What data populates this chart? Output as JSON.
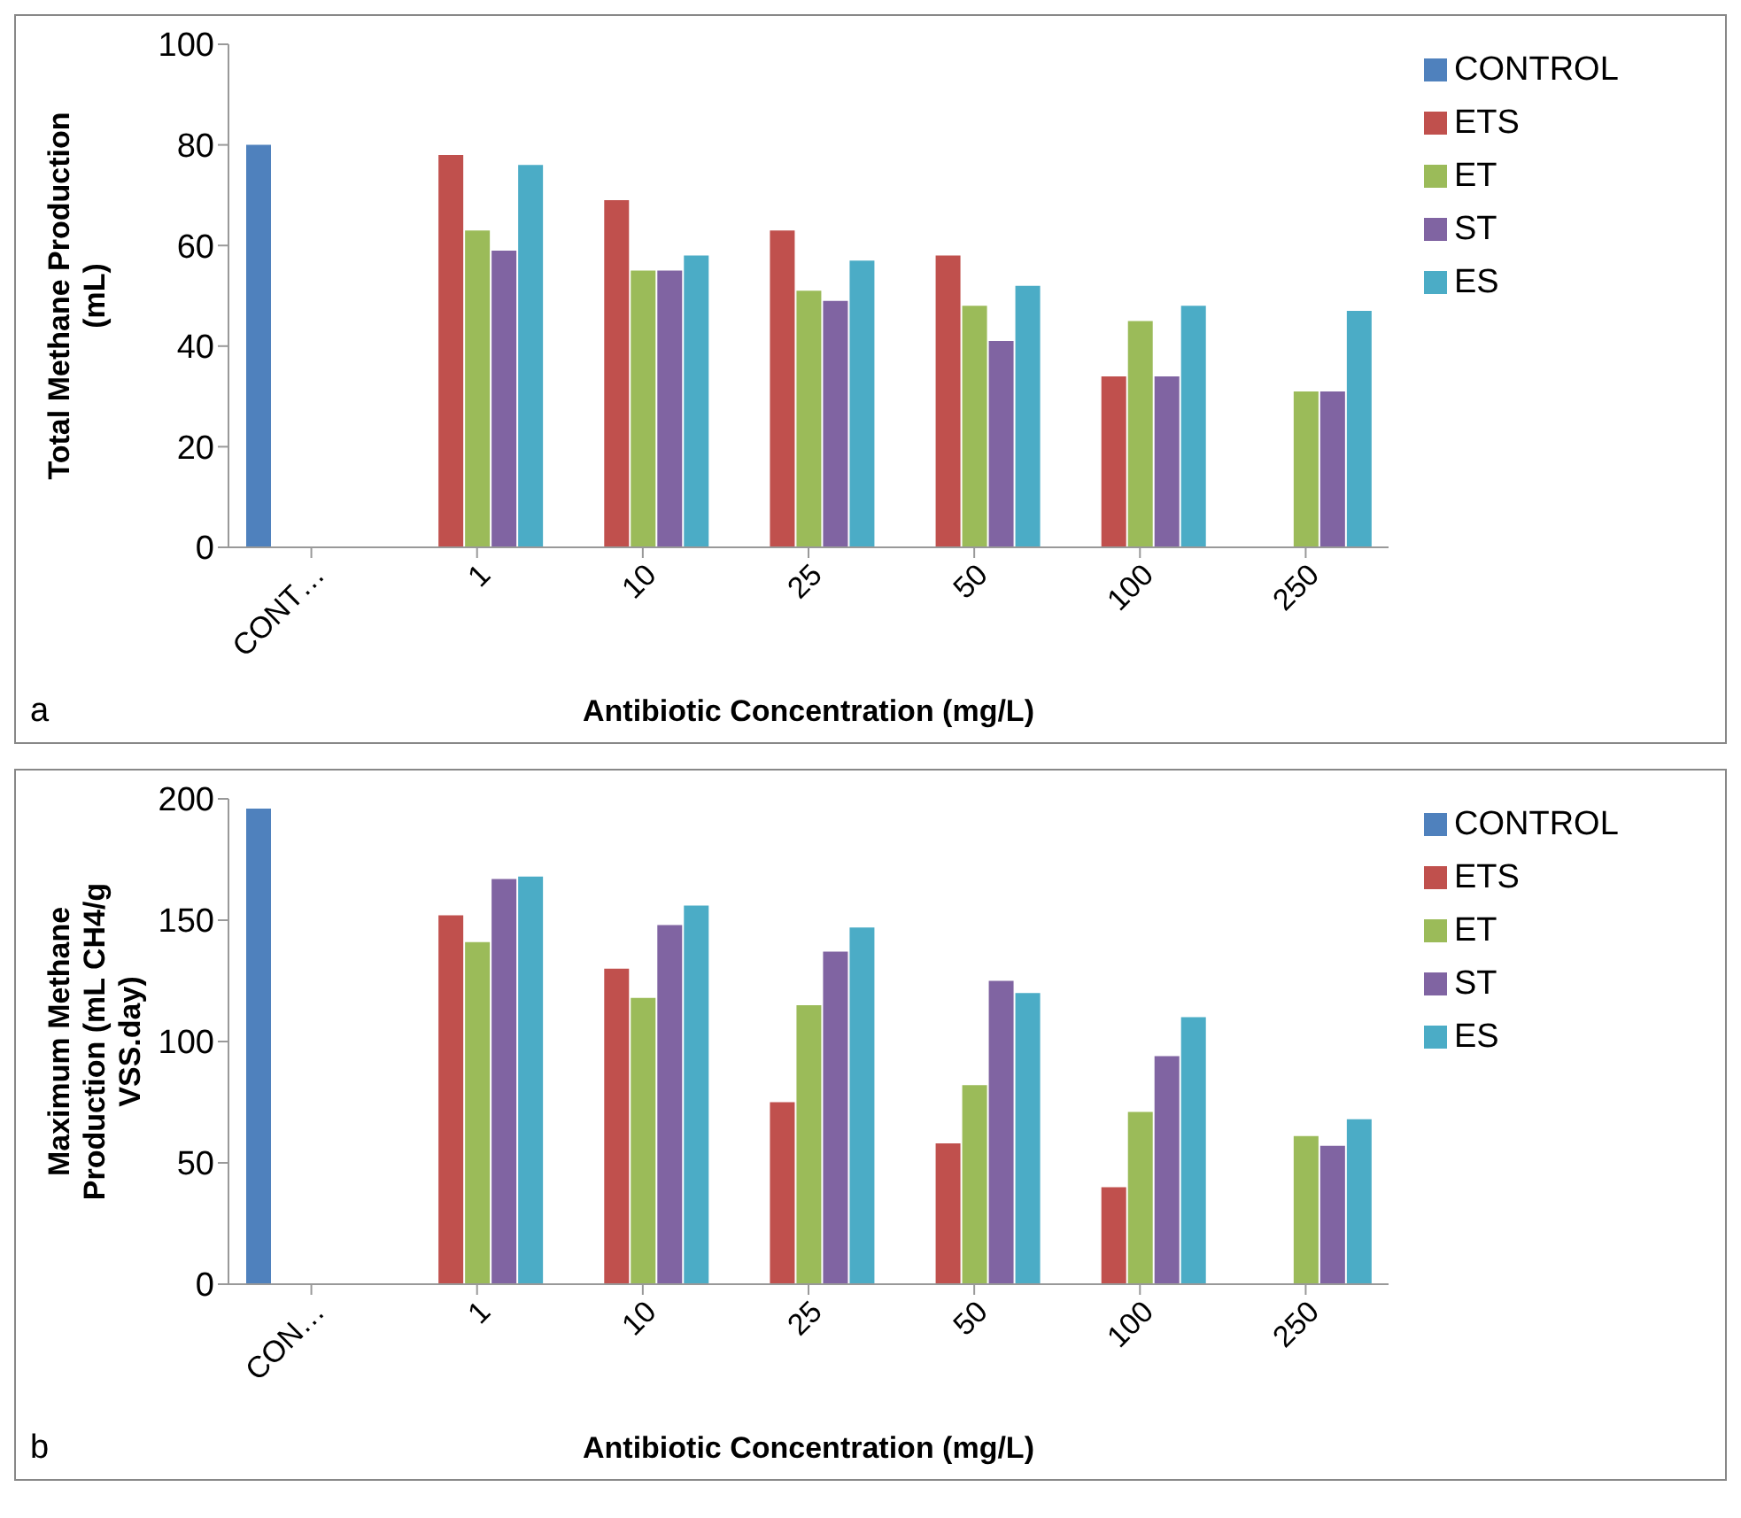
{
  "chart_data": [
    {
      "type": "bar",
      "xlabel": "Antibiotic Concentration (mg/L)",
      "ylabel": "Total Methane Production (mL)",
      "categories": [
        "CONT…",
        "1",
        "10",
        "25",
        "50",
        "100",
        "250"
      ],
      "series": [
        {
          "name": "CONTROL",
          "color": "#4f81bd",
          "values": [
            80,
            null,
            null,
            null,
            null,
            null,
            null
          ]
        },
        {
          "name": "ETS",
          "color": "#c0504d",
          "values": [
            null,
            78,
            69,
            63,
            58,
            34,
            null
          ]
        },
        {
          "name": "ET",
          "color": "#9bbb59",
          "values": [
            null,
            63,
            55,
            51,
            48,
            45,
            31
          ]
        },
        {
          "name": "ST",
          "color": "#8064a2",
          "values": [
            null,
            59,
            55,
            49,
            41,
            34,
            31
          ]
        },
        {
          "name": "ES",
          "color": "#4bacc6",
          "values": [
            null,
            76,
            58,
            57,
            52,
            48,
            47
          ]
        }
      ],
      "ylim": [
        0,
        100
      ],
      "yticks": [
        0,
        20,
        40,
        60,
        80,
        100
      ],
      "legend": "top right",
      "annotations": [
        "a"
      ]
    },
    {
      "type": "bar",
      "xlabel": "Antibiotic Concentration  (mg/L)",
      "ylabel": "Maximum Methane Production (mL CH4/g VSS.day)",
      "categories": [
        "CON…",
        "1",
        "10",
        "25",
        "50",
        "100",
        "250"
      ],
      "series": [
        {
          "name": "CONTROL",
          "color": "#4f81bd",
          "values": [
            196,
            null,
            null,
            null,
            null,
            null,
            null
          ]
        },
        {
          "name": "ETS",
          "color": "#c0504d",
          "values": [
            null,
            152,
            130,
            75,
            58,
            40,
            null
          ]
        },
        {
          "name": "ET",
          "color": "#9bbb59",
          "values": [
            null,
            141,
            118,
            115,
            82,
            71,
            61
          ]
        },
        {
          "name": "ST",
          "color": "#8064a2",
          "values": [
            null,
            167,
            148,
            137,
            125,
            94,
            57
          ]
        },
        {
          "name": "ES",
          "color": "#4bacc6",
          "values": [
            null,
            168,
            156,
            147,
            120,
            110,
            68
          ]
        }
      ],
      "ylim": [
        0,
        200
      ],
      "yticks": [
        0,
        50,
        100,
        150,
        200
      ],
      "legend": "top right",
      "annotations": [
        "b"
      ]
    }
  ]
}
